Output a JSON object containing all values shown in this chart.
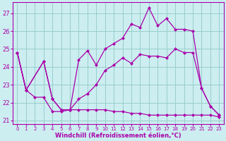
{
  "bg_color": "#cceef0",
  "line_color": "#aa00aa",
  "grid_color": "#99cccc",
  "xlabel": "Windchill (Refroidissement éolien,°C)",
  "xlabel_color": "#aa00aa",
  "tick_color": "#aa00aa",
  "xlim": [
    -0.5,
    23.5
  ],
  "ylim": [
    20.8,
    27.6
  ],
  "yticks": [
    21,
    22,
    23,
    24,
    25,
    26,
    27
  ],
  "xticks": [
    0,
    1,
    2,
    3,
    4,
    5,
    6,
    7,
    8,
    9,
    10,
    11,
    12,
    13,
    14,
    15,
    16,
    17,
    18,
    19,
    20,
    21,
    22,
    23
  ],
  "line1_x": [
    0,
    1,
    3,
    4,
    5,
    6,
    7,
    8,
    9,
    10,
    11,
    12,
    13,
    14,
    15,
    16,
    17,
    18,
    19,
    20,
    21,
    22,
    23
  ],
  "line1_y": [
    24.8,
    22.7,
    24.3,
    22.2,
    21.6,
    21.6,
    22.2,
    22.5,
    23.0,
    23.8,
    24.1,
    24.5,
    24.2,
    24.7,
    24.6,
    24.6,
    24.5,
    25.0,
    24.8,
    24.8,
    22.8,
    21.8,
    21.3
  ],
  "line2_x": [
    0,
    1,
    3,
    4,
    5,
    6,
    7,
    8,
    9,
    10,
    11,
    12,
    13,
    14,
    15,
    16,
    17,
    18,
    19,
    20,
    21,
    22,
    23
  ],
  "line2_y": [
    24.8,
    22.7,
    24.3,
    22.2,
    21.6,
    21.6,
    24.4,
    24.9,
    24.1,
    25.0,
    25.3,
    25.6,
    26.4,
    26.2,
    27.3,
    26.3,
    26.7,
    26.1,
    26.1,
    26.0,
    22.8,
    21.8,
    21.3
  ],
  "line3_x": [
    0,
    1,
    2,
    3,
    4,
    5,
    6,
    7,
    8,
    9,
    10,
    11,
    12,
    13,
    14,
    15,
    16,
    17,
    18,
    19,
    20,
    21,
    22,
    23
  ],
  "line3_y": [
    24.8,
    22.7,
    22.3,
    22.3,
    21.5,
    21.5,
    21.6,
    21.6,
    21.6,
    21.6,
    21.6,
    21.5,
    21.5,
    21.4,
    21.4,
    21.3,
    21.3,
    21.3,
    21.3,
    21.3,
    21.3,
    21.3,
    21.3,
    21.2
  ]
}
